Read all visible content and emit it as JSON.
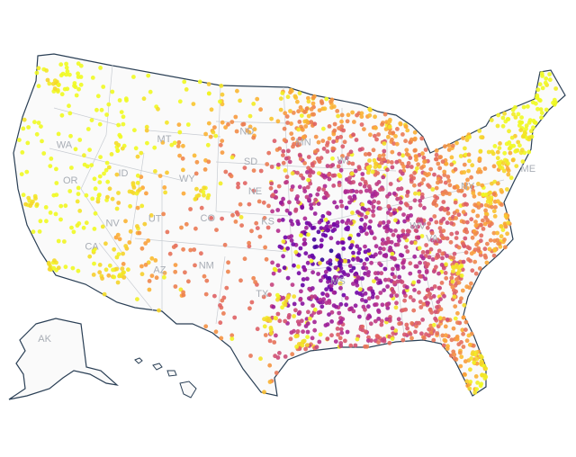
{
  "map": {
    "type": "dot-density-map",
    "region": "United States",
    "state_labels": [
      {
        "code": "WA",
        "lon": -120.5,
        "lat": 47.4
      },
      {
        "code": "OR",
        "lon": -120.6,
        "lat": 43.9
      },
      {
        "code": "CA",
        "lon": -119.6,
        "lat": 37.3
      },
      {
        "code": "ID",
        "lon": -114.6,
        "lat": 44.0
      },
      {
        "code": "NV",
        "lon": -116.7,
        "lat": 39.3
      },
      {
        "code": "MT",
        "lon": -109.6,
        "lat": 47.0
      },
      {
        "code": "WY",
        "lon": -107.5,
        "lat": 43.0
      },
      {
        "code": "UT",
        "lon": -111.7,
        "lat": 39.3
      },
      {
        "code": "AZ",
        "lon": -111.9,
        "lat": 34.3
      },
      {
        "code": "CO",
        "lon": -105.5,
        "lat": 39.0
      },
      {
        "code": "NM",
        "lon": -106.1,
        "lat": 34.4
      },
      {
        "code": "ND",
        "lon": -100.5,
        "lat": 47.4
      },
      {
        "code": "SD",
        "lon": -100.2,
        "lat": 44.4
      },
      {
        "code": "NE",
        "lon": -99.8,
        "lat": 41.5
      },
      {
        "code": "KS",
        "lon": -98.4,
        "lat": 38.5
      },
      {
        "code": "TX",
        "lon": -99.3,
        "lat": 31.4
      },
      {
        "code": "MN",
        "lon": -94.3,
        "lat": 46.3
      },
      {
        "code": "WI",
        "lon": -89.8,
        "lat": 44.6
      },
      {
        "code": "NY",
        "lon": -75.5,
        "lat": 42.9
      },
      {
        "code": "ME",
        "lon": -69.2,
        "lat": 45.3
      },
      {
        "code": "WV",
        "lon": -80.6,
        "lat": 38.6
      },
      {
        "code": "VA",
        "lon": -78.7,
        "lat": 37.5
      },
      {
        "code": "MS",
        "lon": -89.7,
        "lat": 32.7
      },
      {
        "code": "AK",
        "lon": -152,
        "lat": 64
      }
    ],
    "colorscale": [
      "#0d0887",
      "#6a00a8",
      "#b12a90",
      "#e16462",
      "#fca636",
      "#f0f921"
    ],
    "outline_color": "#2a3f55",
    "land_color": "#fafafa",
    "border_color": "#c8ccd2"
  }
}
